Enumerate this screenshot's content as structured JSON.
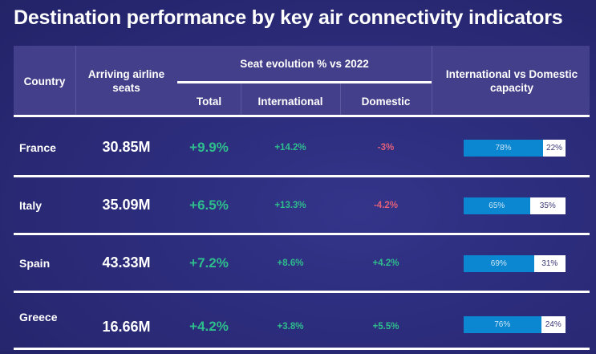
{
  "title": "Destination performance by key air connectivity indicators",
  "headers": {
    "country": "Country",
    "seats": "Arriving airline seats",
    "evolution": "Seat evolution % vs 2022",
    "total": "Total",
    "international": "International",
    "domestic": "Domestic",
    "capacity": "International vs Domestic capacity"
  },
  "colors": {
    "positive": "#2ebd8c",
    "negative": "#e0607a",
    "intl_bar": "#0a87d0"
  },
  "rows": [
    {
      "country": "France",
      "seats": "30.85M",
      "total": "+9.9%",
      "international": "+14.2%",
      "domestic": "-3%",
      "domestic_negative": true,
      "intl_share": 78,
      "intl_label": "78%",
      "dom_label": "22%"
    },
    {
      "country": "Italy",
      "seats": "35.09M",
      "total": "+6.5%",
      "international": "+13.3%",
      "domestic": "-4.2%",
      "domestic_negative": true,
      "intl_share": 65,
      "intl_label": "65%",
      "dom_label": "35%"
    },
    {
      "country": "Spain",
      "seats": "43.33M",
      "total": "+7.2%",
      "international": "+8.6%",
      "domestic": "+4.2%",
      "domestic_negative": false,
      "intl_share": 69,
      "intl_label": "69%",
      "dom_label": "31%"
    },
    {
      "country": "Greece",
      "seats": "16.66M",
      "total": "+4.2%",
      "international": "+3.8%",
      "domestic": "+5.5%",
      "domestic_negative": false,
      "intl_share": 76,
      "intl_label": "76%",
      "dom_label": "24%"
    }
  ]
}
